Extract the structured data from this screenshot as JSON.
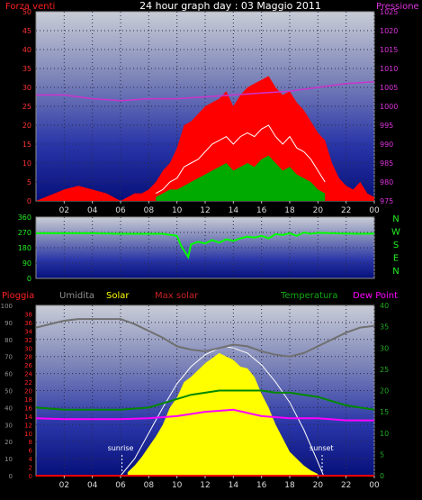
{
  "header": {
    "title": "24 hour graph day : 03 Maggio 2011",
    "left_label": "Forza venti",
    "right_label": "Pressione"
  },
  "colors": {
    "wind_gust": "#ff0000",
    "wind_avg": "#ffffff",
    "wind_green": "#00aa00",
    "pressure": "#cc33cc",
    "direction": "#00ff00",
    "rain": "#ff0000",
    "humidity": "#707070",
    "solar": "#ffff00",
    "max_solar": "#ffffff",
    "temperature": "#008800",
    "dew_point": "#ff00ff",
    "label_humidity": "#909090",
    "label_solar": "#ffff00",
    "label_max_solar": "#cc2222",
    "label_temperature": "#11aa11",
    "label_dew": "#ff00ff",
    "label_rain": "#ff2222"
  },
  "chart_data": [
    {
      "type": "line",
      "name": "wind-pressure",
      "x_ticks": [
        "02",
        "04",
        "06",
        "08",
        "10",
        "12",
        "14",
        "16",
        "18",
        "20",
        "22",
        "00"
      ],
      "y_left_ticks": [
        "0",
        "5",
        "10",
        "15",
        "20",
        "25",
        "30",
        "35",
        "40",
        "45",
        "50"
      ],
      "y_right_ticks": [
        "975",
        "980",
        "985",
        "990",
        "995",
        "1000",
        "1005",
        "1010",
        "1015",
        "1020",
        "1025"
      ],
      "ylim_left": [
        0,
        50
      ],
      "ylim_right": [
        975,
        1025
      ],
      "xlim": [
        0,
        24
      ],
      "series": [
        {
          "key": "gust",
          "x": [
            0,
            2,
            3,
            4,
            5,
            6,
            7,
            7.5,
            8,
            8.5,
            9,
            9.5,
            10,
            10.5,
            11,
            11.5,
            12,
            12.5,
            13,
            13.5,
            14,
            14.5,
            15,
            15.5,
            16,
            16.5,
            17,
            17.5,
            18,
            18.5,
            19,
            19.5,
            20,
            20.5,
            21,
            21.5,
            22,
            22.5,
            23,
            23.5,
            24
          ],
          "values": [
            0,
            3,
            4,
            3,
            2,
            0,
            2,
            2,
            3,
            5,
            8,
            10,
            14,
            20,
            21,
            23,
            25,
            26,
            27,
            29,
            25,
            28,
            30,
            31,
            32,
            33,
            30,
            28,
            29,
            26,
            24,
            21,
            18,
            16,
            10,
            6,
            4,
            3,
            5,
            2,
            1
          ]
        },
        {
          "key": "avg",
          "x": [
            8.5,
            9,
            9.5,
            10,
            10.5,
            11,
            11.5,
            12,
            12.5,
            13,
            13.5,
            14,
            14.5,
            15,
            15.5,
            16,
            16.5,
            17,
            17.5,
            18,
            18.5,
            19,
            19.5,
            20,
            20.5
          ],
          "values": [
            2,
            3,
            5,
            6,
            9,
            10,
            11,
            13,
            15,
            16,
            17,
            15,
            17,
            18,
            17,
            19,
            20,
            17,
            15,
            17,
            14,
            13,
            11,
            8,
            5
          ]
        },
        {
          "key": "green",
          "x": [
            8.5,
            9,
            9.5,
            10,
            10.5,
            11,
            11.5,
            12,
            12.5,
            13,
            13.5,
            14,
            14.5,
            15,
            15.5,
            16,
            16.5,
            17,
            17.5,
            18,
            18.5,
            19,
            19.5,
            20,
            20.5
          ],
          "values": [
            1,
            2,
            3,
            3,
            4,
            5,
            6,
            7,
            8,
            9,
            10,
            8,
            9,
            10,
            9,
            11,
            12,
            10,
            8,
            9,
            7,
            6,
            5,
            3,
            2
          ]
        },
        {
          "key": "pressure",
          "x": [
            0,
            2,
            4,
            6,
            8,
            10,
            12,
            14,
            16,
            18,
            20,
            22,
            24
          ],
          "values": [
            1003,
            1003,
            1002,
            1001.5,
            1002,
            1002,
            1002.5,
            1003,
            1003.5,
            1004,
            1005,
            1006,
            1006.5
          ]
        }
      ]
    },
    {
      "type": "line",
      "name": "direction",
      "x_ticks": [
        "02",
        "04",
        "06",
        "08",
        "10",
        "12",
        "14",
        "16",
        "18",
        "20",
        "22",
        "00"
      ],
      "y_left_ticks": [
        "0",
        "90",
        "180",
        "270",
        "360"
      ],
      "y_right_labels": [
        "N",
        "W",
        "S",
        "E",
        "N"
      ],
      "ylim": [
        0,
        360
      ],
      "xlim": [
        0,
        24
      ],
      "x": [
        0,
        2,
        4,
        6,
        8,
        9,
        10,
        10.3,
        10.8,
        11,
        11.5,
        12,
        12.5,
        13,
        13.5,
        14,
        14.5,
        15,
        15.5,
        16,
        16.5,
        17,
        17.5,
        18,
        18.5,
        19,
        19.5,
        20,
        21,
        22,
        23,
        24
      ],
      "values": [
        265,
        265,
        265,
        262,
        262,
        262,
        250,
        190,
        125,
        200,
        215,
        205,
        225,
        210,
        230,
        220,
        235,
        245,
        240,
        250,
        235,
        260,
        255,
        265,
        250,
        270,
        262,
        268,
        265,
        263,
        262,
        263
      ]
    },
    {
      "type": "area",
      "name": "solar-temperature",
      "labels": [
        "Pioggia",
        "Umidita",
        "Solar",
        "Max solar",
        "Temperatura",
        "Dew Point"
      ],
      "x_ticks": [
        "02",
        "04",
        "06",
        "08",
        "10",
        "12",
        "14",
        "16",
        "18",
        "20",
        "22",
        "00"
      ],
      "y_left_ticks": [
        "0",
        "10",
        "20",
        "30",
        "40",
        "50",
        "60",
        "70",
        "80",
        "90",
        "100"
      ],
      "y_rain_ticks": [
        "0",
        "2",
        "4",
        "6",
        "8",
        "10",
        "12",
        "14",
        "16",
        "18",
        "20",
        "22",
        "24",
        "26",
        "28",
        "30",
        "32",
        "34",
        "36",
        "38"
      ],
      "y_right_ticks": [
        "0",
        "5",
        "10",
        "15",
        "20",
        "25",
        "30",
        "35",
        "40"
      ],
      "ylim_left": [
        0,
        100
      ],
      "ylim_right": [
        0,
        40
      ],
      "xlim": [
        0,
        24
      ],
      "annotations": {
        "sunrise_label": "sunrise",
        "sunset_label": "sunset",
        "sunrise_x": 6.1,
        "sunset_x": 20.3
      },
      "series": [
        {
          "key": "humidity",
          "x": [
            0,
            1,
            2,
            3,
            4,
            5,
            6,
            7,
            8,
            9,
            10,
            11,
            12,
            13,
            14,
            15,
            16,
            17,
            18,
            19,
            20,
            21,
            22,
            23,
            24
          ],
          "values": [
            87,
            89,
            91,
            92,
            92,
            92,
            92,
            89,
            85,
            81,
            76,
            74,
            73,
            75,
            77,
            76,
            73,
            71,
            70,
            72,
            76,
            80,
            84,
            87,
            88
          ]
        },
        {
          "key": "temperature",
          "x": [
            0,
            2,
            4,
            6,
            8,
            9,
            10,
            11,
            12,
            13,
            14,
            15,
            16,
            17,
            18,
            19,
            20,
            21,
            22,
            23,
            24
          ],
          "values": [
            16,
            15.5,
            15.5,
            15.5,
            16,
            17,
            18,
            19,
            19.5,
            20,
            20,
            20,
            20,
            19.5,
            19.5,
            19,
            18.5,
            17.5,
            16.5,
            16,
            15.5
          ]
        },
        {
          "key": "dew",
          "x": [
            0,
            2,
            4,
            6,
            8,
            10,
            12,
            14,
            16,
            18,
            20,
            22,
            24
          ],
          "values": [
            13.5,
            13.3,
            13.3,
            13.3,
            13.5,
            14,
            15,
            15.5,
            14,
            13.5,
            13.5,
            13,
            13
          ]
        },
        {
          "key": "solar",
          "x": [
            6.5,
            7,
            7.5,
            8,
            8.5,
            9,
            9.5,
            10,
            10.5,
            11,
            11.5,
            12,
            12.5,
            13,
            13.5,
            14,
            14.5,
            15,
            15.5,
            16,
            16.5,
            17,
            17.5,
            18,
            18.5,
            19,
            19.5,
            20
          ],
          "values": [
            2,
            6,
            11,
            17,
            23,
            30,
            40,
            46,
            55,
            58,
            62,
            66,
            69,
            72,
            70,
            68,
            64,
            63,
            58,
            48,
            40,
            30,
            22,
            14,
            10,
            6,
            3,
            1
          ]
        },
        {
          "key": "max_solar",
          "x": [
            6,
            7,
            8,
            9,
            10,
            11,
            12,
            13,
            13.4,
            14,
            15,
            16,
            17,
            18,
            19,
            20,
            20.4
          ],
          "values": [
            0,
            10,
            25,
            40,
            54,
            64,
            71,
            75,
            76,
            75,
            72,
            65,
            55,
            43,
            27,
            8,
            0
          ]
        },
        {
          "key": "rain",
          "x": [
            0,
            24
          ],
          "values": [
            0,
            0
          ]
        }
      ]
    }
  ]
}
